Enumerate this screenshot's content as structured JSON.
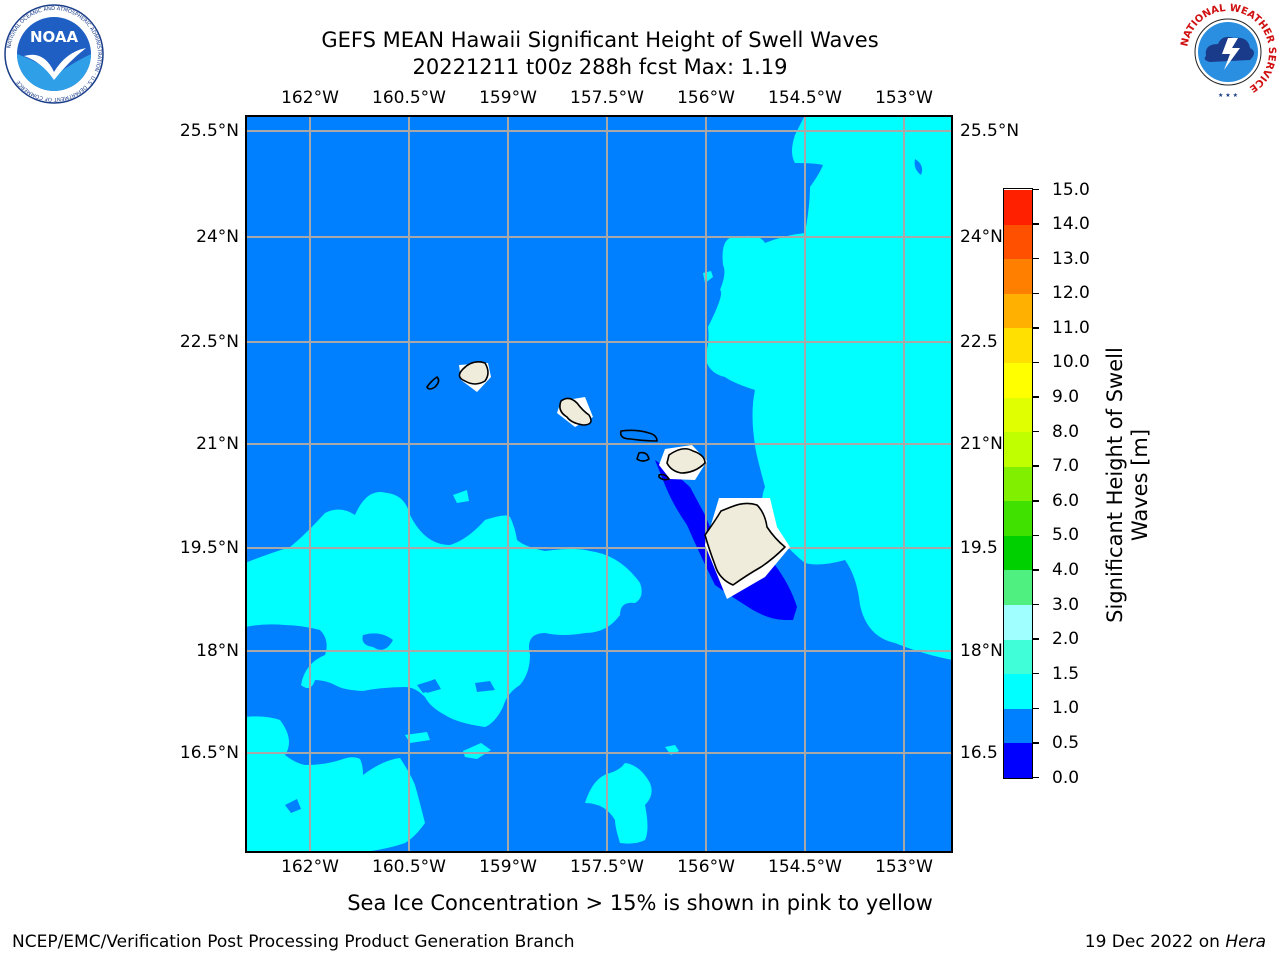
{
  "header": {
    "title_line1": "GEFS MEAN Hawaii Significant Height of Swell Waves",
    "title_line2": "20221211 t00z 288h fcst   Max: 1.19"
  },
  "logos": {
    "noaa": "NOAA",
    "noaa_ring": "NATIONAL OCEANIC AND ATMOSPHERIC ADMINISTRATION · U.S. DEPARTMENT OF COMMERCE",
    "nws_ring": "NATIONAL WEATHER SERVICE"
  },
  "map": {
    "lon_labels": [
      "162°W",
      "160.5°W",
      "159°W",
      "157.5°W",
      "156°W",
      "154.5°W",
      "153°W"
    ],
    "lat_labels": [
      "25.5°N",
      "24°N",
      "22.5°N",
      "21°N",
      "19.5°N",
      "18°N",
      "16.5°N"
    ],
    "lat_labels_right": [
      "25.5°N",
      "24°N",
      "22.5",
      "21°N",
      "19.5",
      "18°N",
      "16.5"
    ]
  },
  "colorbar": {
    "title_line1": "Significant Height of Swell",
    "title_line2": "Waves [m]",
    "ticks": [
      "0.0",
      "0.5",
      "1.0",
      "1.5",
      "2.0",
      "3.0",
      "4.0",
      "5.0",
      "6.0",
      "7.0",
      "8.0",
      "9.0",
      "10.0",
      "11.0",
      "12.0",
      "13.0",
      "14.0",
      "15.0"
    ],
    "colors": [
      "#0000ff",
      "#0080ff",
      "#00ffff",
      "#40ffd8",
      "#a0ffff",
      "#50f080",
      "#00d000",
      "#40e000",
      "#80f000",
      "#c0ff00",
      "#e0ff00",
      "#ffff00",
      "#ffe000",
      "#ffb000",
      "#ff8000",
      "#ff5000",
      "#ff2000"
    ]
  },
  "note": "Sea Ice Concentration > 15% is shown in pink to yellow",
  "footer": {
    "left": "NCEP/EMC/Verification Post Processing Product Generation Branch",
    "date": "19 Dec 2022 on ",
    "host": "Hera"
  }
}
